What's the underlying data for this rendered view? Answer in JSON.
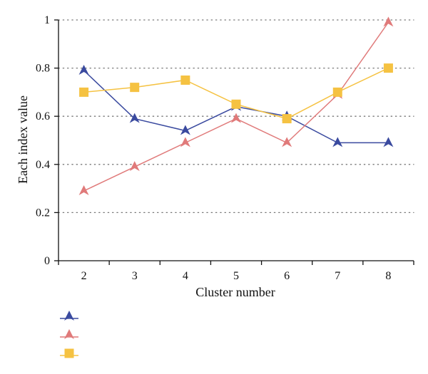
{
  "chart_data": {
    "type": "line",
    "title": "",
    "xlabel": "Cluster number",
    "ylabel": "Each index value",
    "x": [
      2,
      3,
      4,
      5,
      6,
      7,
      8
    ],
    "xticks": [
      "2",
      "3",
      "4",
      "5",
      "6",
      "7",
      "8"
    ],
    "ylim": [
      0,
      1
    ],
    "yticks": [
      "0",
      "0.2",
      "0.4",
      "0.6",
      "0.8",
      "1"
    ],
    "grid": "horizontal dotted",
    "legend_position": "bottom-left",
    "series": [
      {
        "values": [
          0.79,
          0.59,
          0.54,
          0.64,
          0.6,
          0.49,
          0.49
        ],
        "color": "#3a4a9f",
        "marker": "triangle"
      },
      {
        "values": [
          0.29,
          0.39,
          0.49,
          0.59,
          0.49,
          0.69,
          0.99
        ],
        "color": "#e07a7a",
        "marker": "triangle"
      },
      {
        "values": [
          0.7,
          0.72,
          0.75,
          0.65,
          0.59,
          0.7,
          0.8
        ],
        "color": "#f5c242",
        "marker": "square"
      }
    ]
  }
}
